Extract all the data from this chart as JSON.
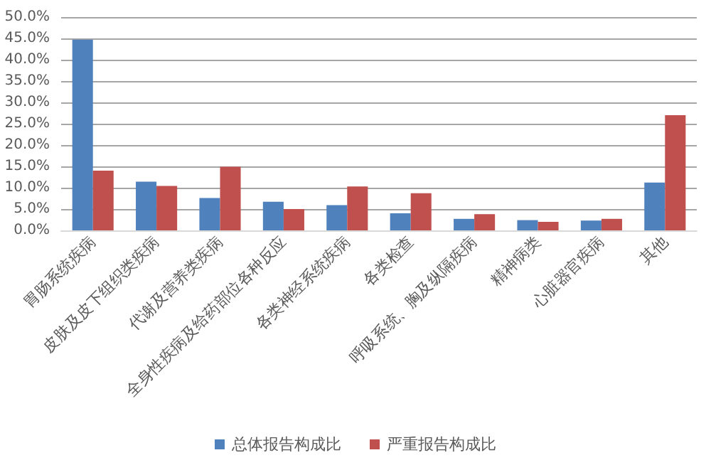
{
  "chart_data": {
    "type": "bar",
    "categories": [
      "胃肠系统疾病",
      "皮肤及皮下组织类疾病",
      "代谢及营养类疾病",
      "全身性疾病及给药部位各种反应",
      "各类神经系统疾病",
      "各类检查",
      "呼吸系统、胸及纵隔疾病",
      "精神病类",
      "心脏器官疾病",
      "其他"
    ],
    "series": [
      {
        "name": "总体报告构成比",
        "color": "#4f81bd",
        "values": [
          44.7,
          11.4,
          7.6,
          6.7,
          5.9,
          4.0,
          2.7,
          2.4,
          2.3,
          11.2
        ]
      },
      {
        "name": "严重报告构成比",
        "color": "#c0504d",
        "values": [
          14.0,
          10.4,
          14.9,
          5.0,
          10.3,
          8.7,
          3.8,
          2.0,
          2.7,
          27.0
        ]
      }
    ],
    "ylim": [
      0,
      50
    ],
    "yticks": [
      {
        "value": 0,
        "label": "0.0%"
      },
      {
        "value": 5,
        "label": "5.0%"
      },
      {
        "value": 10,
        "label": "10.0%"
      },
      {
        "value": 15,
        "label": "15.0%"
      },
      {
        "value": 20,
        "label": "20.0%"
      },
      {
        "value": 25,
        "label": "25.0%"
      },
      {
        "value": 30,
        "label": "30.0%"
      },
      {
        "value": 35,
        "label": "35.0%"
      },
      {
        "value": 40,
        "label": "40.0%"
      },
      {
        "value": 45,
        "label": "45.0%"
      },
      {
        "value": 50,
        "label": "50.0%"
      }
    ],
    "grid": "y",
    "legend": "bottom"
  }
}
